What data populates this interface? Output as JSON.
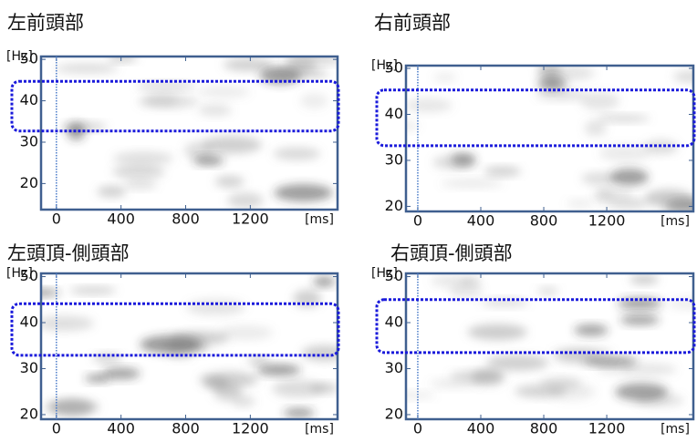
{
  "chart_data": [
    {
      "type": "spectrogram",
      "title": "左前頭部",
      "y_label": "[Hz]",
      "x_label": "[ms]",
      "ylim": [
        13.7,
        50.7
      ],
      "yticks": [
        20,
        30,
        40,
        50
      ],
      "xlim": [
        -95,
        1740
      ],
      "xticks": [
        0,
        400,
        800,
        1200
      ],
      "highlight_band": [
        32.7,
        44.7
      ],
      "highlight_color": "#1a1adb"
    },
    {
      "type": "spectrogram",
      "title": "右前頭部",
      "y_label": "[Hz]",
      "x_label": "[ms]",
      "ylim": [
        18.9,
        50.6
      ],
      "yticks": [
        20,
        30,
        40,
        50
      ],
      "xlim": [
        -75,
        1750
      ],
      "xticks": [
        0,
        400,
        800,
        1200
      ],
      "highlight_band": [
        33.2,
        45.3
      ],
      "highlight_color": "#1a1adb"
    },
    {
      "type": "spectrogram",
      "title": "左頭頂-側頭部",
      "y_label": "[Hz]",
      "x_label": "[ms]",
      "ylim": [
        19,
        50.7
      ],
      "yticks": [
        20,
        30,
        40,
        50
      ],
      "xlim": [
        -95,
        1740
      ],
      "xticks": [
        0,
        400,
        800,
        1200
      ],
      "highlight_band": [
        32.9,
        44.1
      ],
      "highlight_color": "#1a1adb"
    },
    {
      "type": "spectrogram",
      "title": "右頭頂-側頭部",
      "y_label": "[Hz]",
      "x_label": "[ms]",
      "ylim": [
        19,
        50.7
      ],
      "yticks": [
        20,
        30,
        40,
        50
      ],
      "xlim": [
        -75,
        1750
      ],
      "xticks": [
        0,
        400,
        800,
        1200
      ],
      "highlight_band": [
        33.5,
        45
      ],
      "highlight_color": "#1a1adb"
    }
  ]
}
